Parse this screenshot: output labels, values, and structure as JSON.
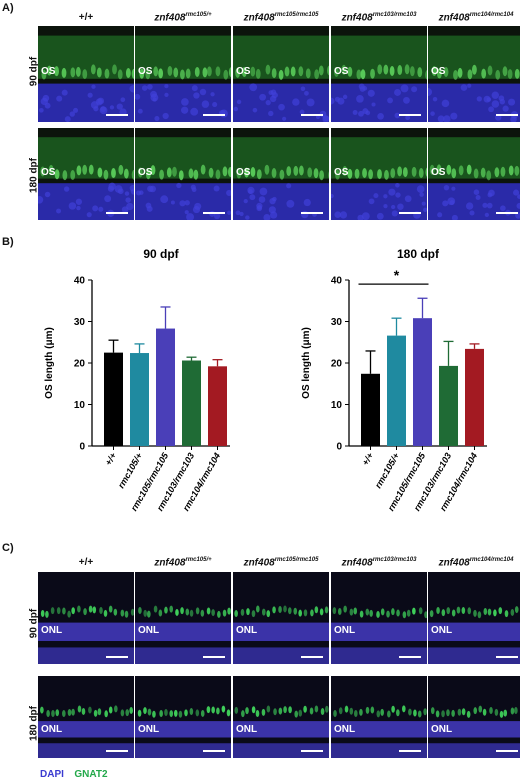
{
  "panel_a": {
    "letter": "A)",
    "columns": [
      {
        "main": "+/+",
        "sup": ""
      },
      {
        "main": "znf408",
        "sup": "rmc105/+"
      },
      {
        "main": "znf408",
        "sup": "rmc105/rmc105"
      },
      {
        "main": "znf408",
        "sup": "rmc103/rmc103"
      },
      {
        "main": "znf408",
        "sup": "rmc104/rmc104"
      }
    ],
    "rows": [
      "90 dpf",
      "180 dpf"
    ],
    "tile_label": "OS"
  },
  "panel_b": {
    "letter": "B)",
    "colors": [
      "#000000",
      "#1f8aa0",
      "#4a3fb8",
      "#1f6b35",
      "#a31a22"
    ],
    "chart_data": [
      {
        "type": "bar",
        "title": "90 dpf",
        "ylabel": "OS length (μm)",
        "categories": [
          "+/+",
          "rmc105/+",
          "rmc105/rmc105",
          "rmc103/rmc103",
          "rmc104/rmc104"
        ],
        "values": [
          22.5,
          22.4,
          28.3,
          20.6,
          19.2
        ],
        "errors": [
          3.0,
          2.2,
          5.2,
          0.8,
          1.6
        ],
        "ylim": [
          0,
          40
        ],
        "yticks": [
          "0",
          "10",
          "20",
          "30",
          "40"
        ]
      },
      {
        "type": "bar",
        "title": "180 dpf",
        "ylabel": "OS length (μm)",
        "categories": [
          "+/+",
          "rmc105/+",
          "rmc105/rmc105",
          "rmc103/rmc103",
          "rmc104/rmc104"
        ],
        "values": [
          17.4,
          26.6,
          30.8,
          19.3,
          23.4
        ],
        "errors": [
          5.5,
          4.2,
          4.8,
          5.9,
          1.2
        ],
        "ylim": [
          0,
          40
        ],
        "yticks": [
          "0",
          "10",
          "20",
          "30",
          "40"
        ],
        "significance": "*"
      }
    ]
  },
  "panel_c": {
    "letter": "C)",
    "columns": [
      {
        "main": "+/+",
        "sup": ""
      },
      {
        "main": "znf408",
        "sup": "rmc105/+"
      },
      {
        "main": "znf408",
        "sup": "rmc105/rmc105"
      },
      {
        "main": "znf408",
        "sup": "rmc103/rmc103"
      },
      {
        "main": "znf408",
        "sup": "rmc104/rmc104"
      }
    ],
    "rows": [
      "90 dpf",
      "180 dpf"
    ],
    "tile_label": "ONL",
    "legend_dapi": "DAPI",
    "legend_gnat2": "GNAT2"
  }
}
